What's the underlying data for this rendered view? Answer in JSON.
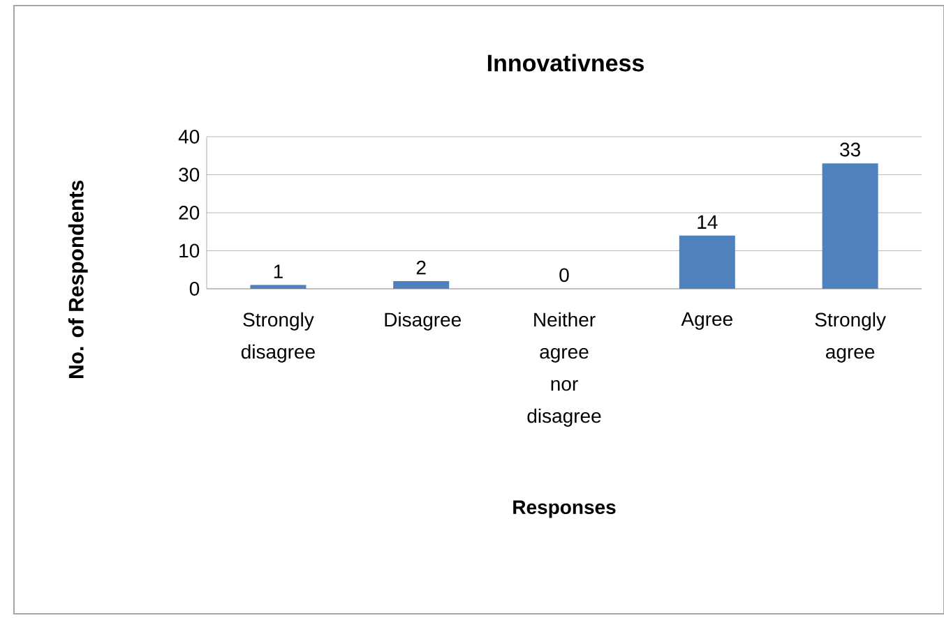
{
  "chart_data": {
    "type": "bar",
    "title": "Innovativness",
    "xlabel": "Responses",
    "ylabel": "No. of Respondents",
    "categories": [
      "Strongly disagree",
      "Disagree",
      "Neither agree nor disagree",
      "Agree",
      "Strongly agree"
    ],
    "values": [
      1,
      2,
      0,
      14,
      33
    ],
    "color": "#4f81bd",
    "ylim": [
      0,
      40
    ],
    "yticks": [
      0,
      10,
      20,
      30,
      40
    ],
    "grid": "y",
    "data_labels": true
  }
}
